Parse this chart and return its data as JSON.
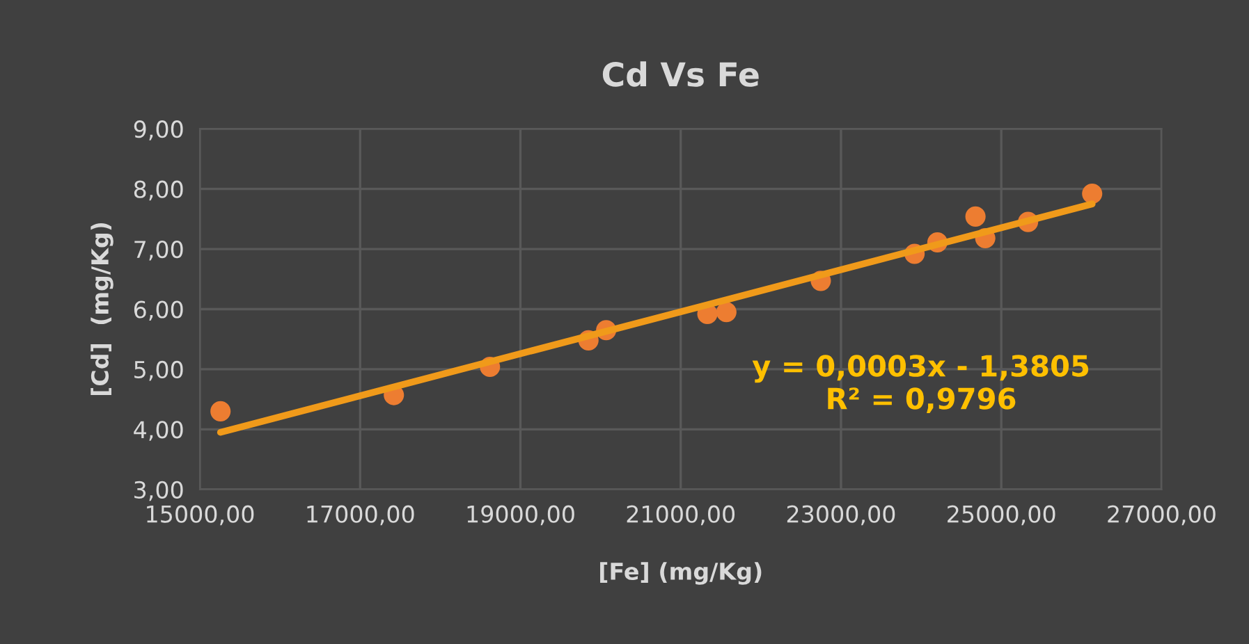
{
  "chart_data": {
    "type": "scatter",
    "title": "Cd Vs Fe",
    "xlabel": "[Fe] (mg/Kg)",
    "ylabel": "[Cd]  (mg/Kg)",
    "series": [
      {
        "color": "#ed7d31",
        "marker": "circle",
        "x": [
          15258,
          17421,
          18620,
          19849,
          20070,
          21333,
          21570,
          22748,
          23918,
          24203,
          24678,
          24800,
          25334,
          26134
        ],
        "values": [
          4.3,
          4.57,
          5.04,
          5.48,
          5.65,
          5.92,
          5.95,
          6.47,
          6.92,
          7.11,
          7.54,
          7.18,
          7.45,
          7.92
        ]
      },
      {
        "type": "line",
        "color": "#f09a1a",
        "marker": "none",
        "line_style": "solid",
        "x": [
          15258,
          26134
        ],
        "values": [
          3.95,
          7.75
        ]
      }
    ],
    "annotations": [
      "y = 0,0003x - 1,3805\nR² = 0,9796"
    ],
    "xlim": [
      15000,
      27000
    ],
    "xticks": [
      {
        "value": 15000,
        "label": "15000,00"
      },
      {
        "value": 17000,
        "label": "17000,00"
      },
      {
        "value": 19000,
        "label": "19000,00"
      },
      {
        "value": 21000,
        "label": "21000,00"
      },
      {
        "value": 23000,
        "label": "23000,00"
      },
      {
        "value": 25000,
        "label": "25000,00"
      },
      {
        "value": 27000,
        "label": "27000,00"
      }
    ],
    "ylim": [
      3,
      9
    ],
    "yticks": [
      {
        "value": 3,
        "label": "3,00"
      },
      {
        "value": 4,
        "label": "4,00"
      },
      {
        "value": 5,
        "label": "5,00"
      },
      {
        "value": 6,
        "label": "6,00"
      },
      {
        "value": 7,
        "label": "7,00"
      },
      {
        "value": 8,
        "label": "8,00"
      },
      {
        "value": 9,
        "label": "9,00"
      }
    ],
    "grid": true
  }
}
